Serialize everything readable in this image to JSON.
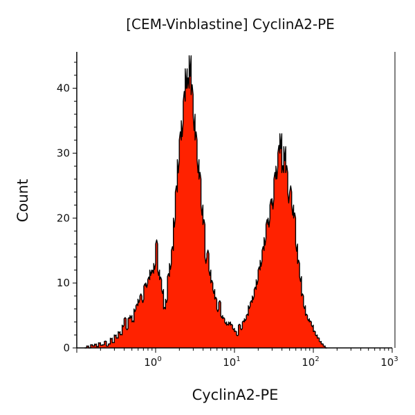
{
  "chart_data": {
    "type": "area",
    "title": "[CEM-Vinblastine] CyclinA2-PE",
    "xlabel": "CyclinA2-PE",
    "ylabel": "Count",
    "x_scale": "log",
    "xlim": [
      0.1,
      1000
    ],
    "ylim": [
      0,
      45.6
    ],
    "x_ticks": [
      {
        "base": "10",
        "exp": "0",
        "value": 1
      },
      {
        "base": "10",
        "exp": "1",
        "value": 10
      },
      {
        "base": "10",
        "exp": "2",
        "value": 100
      },
      {
        "base": "10",
        "exp": "3",
        "value": 1000
      }
    ],
    "y_ticks": [
      "0",
      "10",
      "20",
      "30",
      "40"
    ],
    "grid": false,
    "fill_color": "#ff2200",
    "line_color": "#000000",
    "histogram": {
      "bin_start": 0.126,
      "bins_per_decade": 40,
      "counts": [
        0,
        0.3,
        0,
        0.5,
        0.3,
        0.6,
        0.2,
        0.8,
        0.4,
        0.5,
        1,
        0.3,
        0.6,
        1.5,
        0.8,
        2,
        1.5,
        2.5,
        2,
        3.5,
        4.5,
        3,
        4.5,
        5,
        4,
        6,
        6.5,
        7.5,
        8,
        7.5,
        9.5,
        10,
        10.5,
        12,
        11.5,
        13,
        16,
        12,
        10.5,
        9,
        6,
        7.5,
        11,
        13,
        15,
        20,
        24,
        29,
        32,
        35,
        38,
        43,
        40,
        45,
        39,
        36,
        32,
        29,
        26,
        22,
        19,
        14,
        14.5,
        12,
        10,
        9,
        7.5,
        6,
        7,
        5,
        4.5,
        4,
        3.5,
        4,
        3.5,
        3,
        2.5,
        2,
        3.5,
        3,
        4,
        4.5,
        5,
        6.5,
        7,
        8,
        9,
        10.5,
        12,
        13.5,
        15,
        17,
        19,
        20,
        22,
        23,
        26,
        28,
        30,
        33,
        27,
        31,
        27,
        24,
        24,
        22,
        20,
        16,
        13,
        11,
        8,
        6.5,
        5,
        4.5,
        4,
        3.5,
        2.5,
        2,
        1.5,
        1,
        0.6,
        0.3,
        0
      ]
    }
  }
}
